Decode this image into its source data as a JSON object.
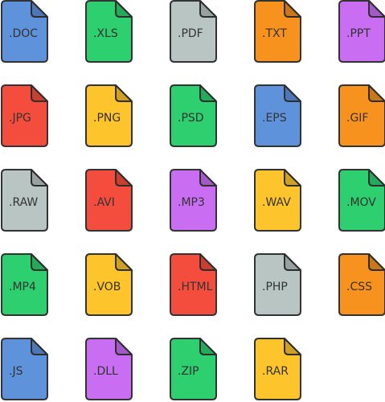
{
  "icons": [
    {
      "label": ".DOC",
      "color": "#5e93dc"
    },
    {
      "label": ".XLS",
      "color": "#2ecf6e"
    },
    {
      "label": ".PDF",
      "color": "#b9c5c3"
    },
    {
      "label": ".TXT",
      "color": "#f7921f"
    },
    {
      "label": ".PPT",
      "color": "#c96ef2"
    },
    {
      "label": ".JPG",
      "color": "#f54d3d"
    },
    {
      "label": ".PNG",
      "color": "#fdc52b"
    },
    {
      "label": ".PSD",
      "color": "#2ecf6e"
    },
    {
      "label": ".EPS",
      "color": "#5e93dc"
    },
    {
      "label": ".GIF",
      "color": "#f7921f"
    },
    {
      "label": ".RAW",
      "color": "#b9c5c3"
    },
    {
      "label": ".AVI",
      "color": "#f54d3d"
    },
    {
      "label": ".MP3",
      "color": "#c96ef2"
    },
    {
      "label": ".WAV",
      "color": "#fdc52b"
    },
    {
      "label": ".MOV",
      "color": "#2ecf6e"
    },
    {
      "label": ".MP4",
      "color": "#2ecf6e"
    },
    {
      "label": ".VOB",
      "color": "#fdc52b"
    },
    {
      "label": ".HTML",
      "color": "#f54d3d"
    },
    {
      "label": ".PHP",
      "color": "#b9c5c3"
    },
    {
      "label": ".CSS",
      "color": "#f7921f"
    },
    {
      "label": ".JS",
      "color": "#5e93dc"
    },
    {
      "label": ".DLL",
      "color": "#c96ef2"
    },
    {
      "label": ".ZIP",
      "color": "#2ecf6e"
    },
    {
      "label": ".RAR",
      "color": "#fdc52b"
    }
  ]
}
